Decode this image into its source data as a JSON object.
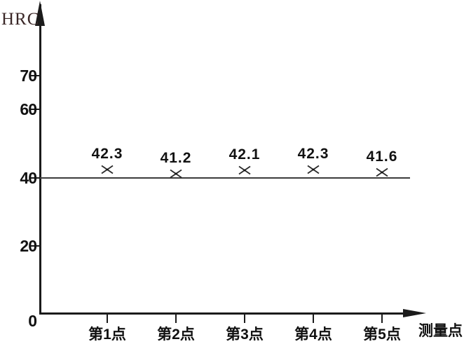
{
  "chart_data": {
    "type": "scatter",
    "title": "",
    "categories": [
      "第1点",
      "第2点",
      "第3点",
      "第4点",
      "第5点"
    ],
    "values": [
      42.3,
      41.2,
      42.1,
      42.3,
      41.6
    ],
    "point_labels": [
      "42.3",
      "41.2",
      "42.1",
      "42.3",
      "41.6"
    ],
    "ylabel": "HRC",
    "xlabel": "测量点",
    "yticks": [
      70,
      60,
      40,
      20,
      0
    ],
    "ylim": [
      0,
      80
    ],
    "reference_line_y": 40,
    "marker_glyph": "×",
    "grid": false,
    "legend": "none",
    "colors": {
      "background": "#ffffff",
      "axis": "#1b1b1b",
      "text": "#111111",
      "ylabel_text": "#3a2727",
      "reference_line": "#3c3c3c"
    }
  }
}
